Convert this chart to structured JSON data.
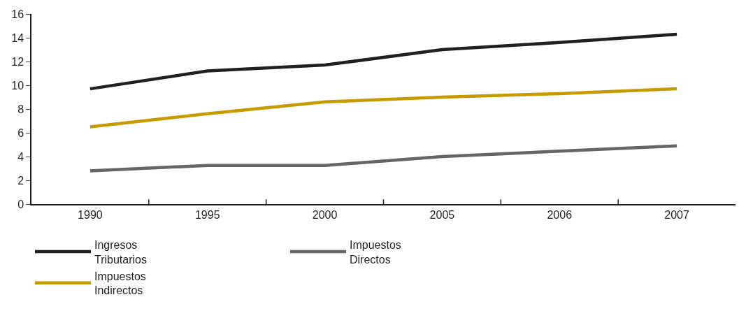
{
  "chart_data": {
    "type": "line",
    "categories": [
      "1990",
      "1995",
      "2000",
      "2005",
      "2006",
      "2007"
    ],
    "series": [
      {
        "name": "Ingresos Tributarios",
        "color": "#231f20",
        "values": [
          9.7,
          11.2,
          11.7,
          13.0,
          13.6,
          14.3
        ]
      },
      {
        "name": "Impuestos Directos",
        "color": "#666666",
        "values": [
          2.8,
          3.25,
          3.25,
          4.0,
          4.45,
          4.9
        ]
      },
      {
        "name": "Impuestos Indirectos",
        "color": "#c79a00",
        "values": [
          6.5,
          7.6,
          8.6,
          9.0,
          9.3,
          9.7
        ]
      }
    ],
    "ylim": [
      0,
      16
    ],
    "yticks": [
      0,
      2,
      4,
      6,
      8,
      10,
      12,
      14,
      16
    ],
    "legend": "bottom",
    "marker": "none",
    "line_style": "solid"
  }
}
